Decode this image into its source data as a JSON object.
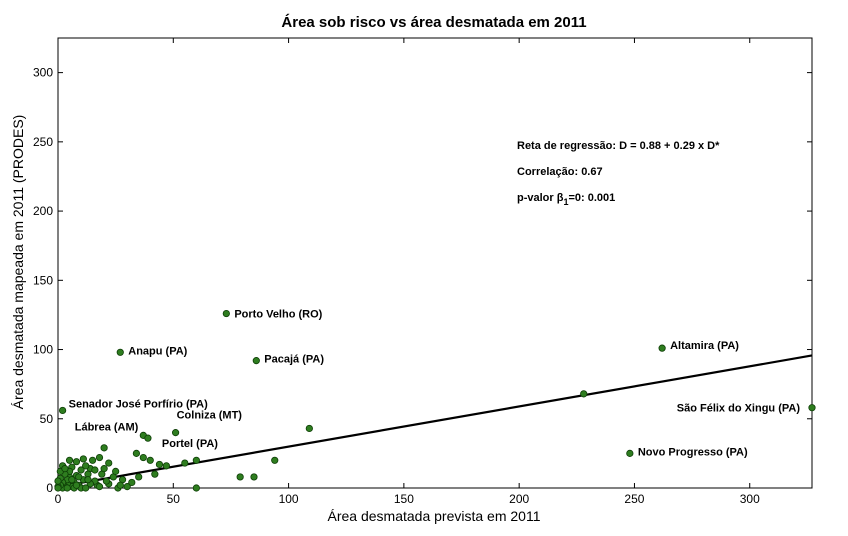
{
  "chart_data": {
    "type": "scatter",
    "title": "Área sob risco vs área desmatada em 2011",
    "xlabel": "Área desmatada prevista em 2011",
    "ylabel": "Área desmatada mapeada em 2011 (PRODES)",
    "xlim": [
      0,
      327
    ],
    "ylim": [
      0,
      325
    ],
    "xticks": [
      0,
      50,
      100,
      150,
      200,
      250,
      300
    ],
    "yticks": [
      0,
      50,
      100,
      150,
      200,
      250,
      300
    ],
    "grid": false,
    "point_color": "#2e7d1f",
    "line_color": "#000000",
    "regression": {
      "intercept": 0.88,
      "slope": 0.29
    },
    "annotations": {
      "regression_text": "Reta de regressão: D = 0.88 + 0.29 x D*",
      "correlation_text": "Correlação:  0.67",
      "pvalue_prefix": "p-valor β",
      "pvalue_sub": "1",
      "pvalue_suffix": "=0:  0.001"
    },
    "labeled_points": [
      {
        "label": "Porto Velho (RO)",
        "x": 73,
        "y": 126
      },
      {
        "label": "Anapu (PA)",
        "x": 27,
        "y": 98
      },
      {
        "label": "Pacajá (PA)",
        "x": 86,
        "y": 92
      },
      {
        "label": "Altamira (PA)",
        "x": 262,
        "y": 101
      },
      {
        "label": "Senador José Porfírio (PA)",
        "x": 2,
        "y": 56
      },
      {
        "label": "Lábrea (AM)",
        "x": 37,
        "y": 38
      },
      {
        "label": "Colniza (MT)",
        "x": 51,
        "y": 40
      },
      {
        "label": "Portel (PA)",
        "x": 39,
        "y": 36
      },
      {
        "label": "São Félix do Xingu (PA)",
        "x": 327,
        "y": 58
      },
      {
        "label": "Novo Progresso (PA)",
        "x": 248,
        "y": 25
      }
    ],
    "points": [
      [
        228,
        68
      ],
      [
        109,
        43
      ],
      [
        94,
        20
      ],
      [
        85,
        8
      ],
      [
        79,
        8
      ],
      [
        60,
        20
      ],
      [
        60,
        0
      ],
      [
        55,
        18
      ],
      [
        47,
        16
      ],
      [
        44,
        17
      ],
      [
        42,
        10
      ],
      [
        40,
        20
      ],
      [
        37,
        22
      ],
      [
        34,
        25
      ],
      [
        32,
        4
      ],
      [
        30,
        1
      ],
      [
        28,
        6
      ],
      [
        26,
        0
      ],
      [
        24,
        8
      ],
      [
        22,
        18
      ],
      [
        20,
        29
      ],
      [
        19,
        10
      ],
      [
        18,
        22
      ],
      [
        17,
        2
      ],
      [
        16,
        5
      ],
      [
        15,
        20
      ],
      [
        14,
        14
      ],
      [
        13,
        10
      ],
      [
        12,
        16
      ],
      [
        11,
        6
      ],
      [
        10,
        13
      ],
      [
        9,
        2
      ],
      [
        8,
        19
      ],
      [
        8,
        9
      ],
      [
        7,
        4
      ],
      [
        6,
        15
      ],
      [
        6,
        1
      ],
      [
        5,
        8
      ],
      [
        5,
        12
      ],
      [
        4,
        3
      ],
      [
        4,
        6
      ],
      [
        3,
        10
      ],
      [
        3,
        1
      ],
      [
        2,
        16
      ],
      [
        2,
        4
      ],
      [
        2,
        0
      ],
      [
        1,
        7
      ],
      [
        1,
        2
      ],
      [
        1,
        12
      ],
      [
        0,
        1
      ],
      [
        0,
        5
      ],
      [
        0,
        0
      ],
      [
        3,
        14
      ],
      [
        10,
        0
      ],
      [
        14,
        3
      ],
      [
        18,
        1
      ],
      [
        22,
        3
      ],
      [
        25,
        12
      ],
      [
        12,
        0
      ],
      [
        7,
        0
      ],
      [
        16,
        13
      ],
      [
        21,
        5
      ],
      [
        9,
        8
      ],
      [
        5,
        20
      ],
      [
        27,
        2
      ],
      [
        35,
        8
      ],
      [
        13,
        6
      ],
      [
        11,
        21
      ],
      [
        6,
        6
      ],
      [
        4,
        0
      ],
      [
        20,
        14
      ],
      [
        8,
        2
      ]
    ]
  }
}
